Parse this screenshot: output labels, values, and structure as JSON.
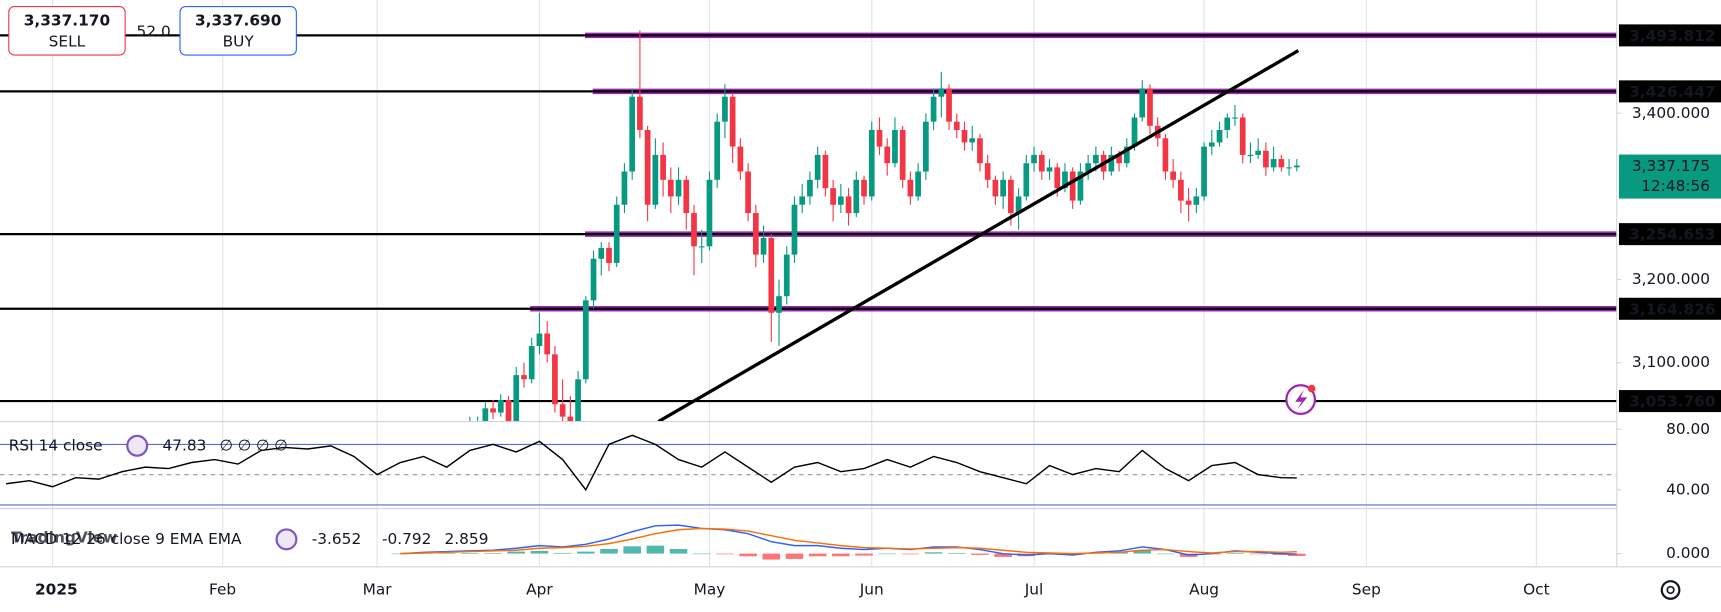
{
  "ui": {
    "sell_price": "3,337.170",
    "sell": "SELL",
    "spread": "52.0",
    "buy_price": "3,337.690",
    "buy": "BUY",
    "watermark": "TradingView"
  },
  "chart_data": [
    {
      "type": "candlestick",
      "xlim": [
        -6.8,
        202.4
      ],
      "xticks": [
        {
          "value": 0,
          "label": "2025"
        },
        {
          "value": 22,
          "label": "Feb"
        },
        {
          "value": 42,
          "label": "Mar"
        },
        {
          "value": 63,
          "label": "Apr"
        },
        {
          "value": 85,
          "label": "May"
        },
        {
          "value": 106,
          "label": "Jun"
        },
        {
          "value": 127,
          "label": "Jul"
        },
        {
          "value": 149,
          "label": "Aug"
        },
        {
          "value": 170,
          "label": "Sep"
        },
        {
          "value": 192,
          "label": "Oct"
        }
      ],
      "ylim": [
        3029.1,
        3536.4
      ],
      "yticks": [
        {
          "value": 3100,
          "label": "3,100.000"
        },
        {
          "value": 3200,
          "label": "3,200.000"
        },
        {
          "value": 3400,
          "label": "3,400.000"
        }
      ],
      "up_color": "#089981",
      "down_color": "#f23645",
      "x": [
        54,
        55,
        56,
        57,
        58,
        59,
        60,
        61,
        62,
        63,
        64,
        65,
        66,
        67,
        68,
        69,
        70,
        71,
        72,
        73,
        74,
        75,
        76,
        77,
        78,
        79,
        80,
        81,
        82,
        83,
        84,
        85,
        86,
        87,
        88,
        89,
        90,
        91,
        92,
        93,
        94,
        95,
        96,
        97,
        98,
        99,
        100,
        101,
        102,
        103,
        104,
        105,
        106,
        107,
        108,
        109,
        110,
        111,
        112,
        113,
        114,
        115,
        116,
        117,
        118,
        119,
        120,
        121,
        122,
        123,
        124,
        125,
        126,
        127,
        128,
        129,
        130,
        131,
        132,
        133,
        134,
        135,
        136,
        137,
        138,
        139,
        140,
        141,
        142,
        143,
        144,
        145,
        146,
        147,
        148,
        149,
        150,
        151,
        152,
        153,
        154,
        155,
        156,
        157,
        158,
        159,
        160,
        161
      ],
      "open": [
        3010,
        3020,
        3025,
        3045,
        3040,
        3055,
        3020,
        3085,
        3080,
        3120,
        3135,
        3110,
        3050,
        3035,
        2990,
        3080,
        3175,
        3225,
        3238,
        3220,
        3290,
        3330,
        3420,
        3380,
        3290,
        3350,
        3320,
        3300,
        3320,
        3280,
        3240,
        3240,
        3320,
        3390,
        3420,
        3360,
        3330,
        3280,
        3230,
        3250,
        3160,
        3180,
        3230,
        3290,
        3300,
        3320,
        3350,
        3310,
        3290,
        3300,
        3280,
        3320,
        3300,
        3380,
        3360,
        3340,
        3380,
        3320,
        3300,
        3330,
        3390,
        3420,
        3430,
        3390,
        3380,
        3365,
        3370,
        3340,
        3320,
        3300,
        3320,
        3280,
        3300,
        3340,
        3350,
        3330,
        3335,
        3310,
        3330,
        3295,
        3330,
        3340,
        3350,
        3330,
        3350,
        3340,
        3360,
        3395,
        3430,
        3385,
        3370,
        3330,
        3320,
        3295,
        3290,
        3300,
        3360,
        3365,
        3380,
        3395,
        3395,
        3350,
        3350,
        3355,
        3335,
        3345,
        3335,
        3335
      ],
      "high": [
        3035,
        3035,
        3052,
        3055,
        3062,
        3060,
        3095,
        3100,
        3130,
        3160,
        3150,
        3120,
        3080,
        3060,
        3090,
        3180,
        3235,
        3245,
        3245,
        3300,
        3340,
        3430,
        3500,
        3385,
        3370,
        3365,
        3335,
        3335,
        3325,
        3290,
        3260,
        3330,
        3400,
        3435,
        3425,
        3370,
        3340,
        3290,
        3265,
        3255,
        3200,
        3240,
        3300,
        3315,
        3330,
        3360,
        3355,
        3320,
        3315,
        3310,
        3330,
        3325,
        3390,
        3395,
        3370,
        3395,
        3385,
        3330,
        3340,
        3400,
        3430,
        3450,
        3435,
        3400,
        3390,
        3385,
        3375,
        3350,
        3325,
        3330,
        3325,
        3310,
        3350,
        3360,
        3355,
        3345,
        3340,
        3340,
        3335,
        3340,
        3350,
        3360,
        3355,
        3360,
        3355,
        3370,
        3400,
        3440,
        3435,
        3395,
        3375,
        3345,
        3330,
        3310,
        3310,
        3365,
        3380,
        3390,
        3400,
        3410,
        3400,
        3365,
        3370,
        3365,
        3360,
        3350,
        3345,
        3345
      ],
      "low": [
        3005,
        3012,
        3020,
        3032,
        3035,
        3010,
        3015,
        3070,
        3075,
        3110,
        3100,
        3040,
        3000,
        2975,
        2985,
        3075,
        3165,
        3205,
        3210,
        3215,
        3280,
        3320,
        3370,
        3270,
        3285,
        3300,
        3280,
        3290,
        3260,
        3205,
        3220,
        3235,
        3310,
        3370,
        3340,
        3320,
        3270,
        3215,
        3220,
        3125,
        3120,
        3170,
        3220,
        3280,
        3290,
        3310,
        3300,
        3270,
        3280,
        3265,
        3275,
        3290,
        3295,
        3350,
        3325,
        3335,
        3310,
        3290,
        3295,
        3320,
        3380,
        3395,
        3380,
        3370,
        3355,
        3355,
        3330,
        3310,
        3290,
        3285,
        3265,
        3260,
        3295,
        3330,
        3320,
        3320,
        3300,
        3305,
        3285,
        3290,
        3320,
        3330,
        3320,
        3325,
        3330,
        3335,
        3355,
        3390,
        3375,
        3360,
        3320,
        3310,
        3280,
        3270,
        3280,
        3295,
        3350,
        3360,
        3370,
        3385,
        3340,
        3340,
        3345,
        3325,
        3330,
        3330,
        3325,
        3330
      ],
      "close": [
        3020,
        3025,
        3045,
        3040,
        3055,
        3020,
        3085,
        3080,
        3120,
        3135,
        3110,
        3050,
        3035,
        2990,
        3080,
        3175,
        3225,
        3238,
        3220,
        3290,
        3330,
        3420,
        3380,
        3290,
        3350,
        3320,
        3300,
        3320,
        3280,
        3240,
        3240,
        3320,
        3390,
        3420,
        3360,
        3330,
        3280,
        3230,
        3250,
        3160,
        3180,
        3230,
        3290,
        3300,
        3320,
        3350,
        3310,
        3290,
        3300,
        3280,
        3320,
        3300,
        3380,
        3360,
        3340,
        3380,
        3320,
        3300,
        3330,
        3390,
        3420,
        3430,
        3390,
        3380,
        3365,
        3370,
        3340,
        3320,
        3300,
        3320,
        3280,
        3300,
        3340,
        3350,
        3330,
        3335,
        3310,
        3330,
        3295,
        3330,
        3340,
        3350,
        3330,
        3350,
        3340,
        3360,
        3395,
        3430,
        3385,
        3370,
        3330,
        3320,
        3295,
        3290,
        3300,
        3360,
        3365,
        3380,
        3395,
        3395,
        3350,
        3350,
        3355,
        3335,
        3345,
        3335,
        3335,
        3337.175
      ],
      "last_label": "3,337.175",
      "countdown": "12:48:56",
      "levels": [
        {
          "value": 3493.812,
          "label": "3,493.812",
          "start": 68.9
        },
        {
          "value": 3426.447,
          "label": "3,426.447",
          "start": 69.9
        },
        {
          "value": 3254.653,
          "label": "3,254.653",
          "start": 68.9
        },
        {
          "value": 3164.826,
          "label": "3,164.826",
          "start": 61.8
        },
        {
          "value": 3053.76,
          "label": "3,053.760"
        }
      ],
      "level_color": "#000000",
      "zone_color": "#9c27b0",
      "trendline": {
        "x": [
          78.4,
          161.2
        ],
        "y": [
          3029.1,
          3475.5
        ],
        "color": "#000000"
      }
    },
    {
      "type": "line",
      "legend": "RSI 14 close",
      "flags": "∅ ∅ ∅ ∅",
      "ylim": [
        27.6,
        85.1
      ],
      "yticks": [
        {
          "value": 80,
          "label": "80.00"
        },
        {
          "value": 40,
          "label": "40.00"
        }
      ],
      "bands": [
        70,
        30
      ],
      "midline": 50,
      "band_color": "#5b6bd6",
      "x": [
        -6,
        -3,
        0,
        3,
        6,
        9,
        12,
        15,
        18,
        21,
        24,
        27,
        30,
        33,
        36,
        39,
        42,
        45,
        48,
        51,
        54,
        57,
        60,
        63,
        66,
        69,
        72,
        75,
        78,
        81,
        84,
        87,
        90,
        93,
        96,
        99,
        102,
        105,
        108,
        111,
        114,
        117,
        120,
        123,
        126,
        129,
        132,
        135,
        138,
        141,
        144,
        147,
        150,
        153,
        156,
        159,
        161
      ],
      "series": [
        {
          "color": "#000000",
          "values": [
            44,
            46,
            42,
            48,
            47,
            52,
            55,
            54,
            58,
            60,
            57,
            66,
            68,
            67,
            69,
            62,
            50,
            58,
            62,
            55,
            66,
            70,
            65,
            72,
            60,
            40,
            70,
            76,
            70,
            60,
            55,
            65,
            55,
            45,
            55,
            58,
            52,
            54,
            60,
            55,
            62,
            58,
            52,
            48,
            44,
            56,
            50,
            54,
            52,
            66,
            54,
            46,
            56,
            58,
            50,
            48,
            47.83
          ]
        }
      ]
    },
    {
      "type": "macd",
      "legend": "MACD 12 26 close 9 EMA EMA",
      "ylim": [
        -20,
        68
      ],
      "yticks": [
        {
          "value": 0,
          "label": "0.000"
        }
      ],
      "x": [
        45,
        48,
        51,
        54,
        57,
        60,
        63,
        66,
        69,
        72,
        75,
        78,
        81,
        84,
        87,
        90,
        93,
        96,
        99,
        102,
        105,
        108,
        111,
        114,
        117,
        120,
        123,
        126,
        129,
        132,
        135,
        138,
        141,
        144,
        147,
        150,
        153,
        156,
        159,
        161
      ],
      "histogram": {
        "up_color": "#26a69a",
        "down_color": "#ff5252",
        "values": [
          0,
          1,
          1,
          1,
          1,
          3,
          4,
          1,
          3,
          7,
          11,
          12,
          7,
          0,
          -1,
          -4,
          -9,
          -8,
          -4,
          -4,
          -3,
          0,
          -1,
          2,
          1,
          -2,
          -5,
          -4,
          -1,
          -2,
          1,
          2,
          5,
          0,
          -5,
          -1,
          1,
          -1,
          -2,
          -3.652
        ]
      },
      "series": [
        {
          "color": "#2962ff",
          "values": [
            0,
            2,
            3,
            4,
            5,
            8,
            12,
            10,
            14,
            22,
            33,
            42,
            43,
            38,
            36,
            30,
            18,
            12,
            12,
            8,
            6,
            8,
            6,
            10,
            10,
            6,
            0,
            -2,
            0,
            -2,
            2,
            4,
            10,
            6,
            -2,
            0,
            4,
            2,
            0,
            -0.792
          ]
        },
        {
          "color": "#ff6d00",
          "values": [
            0,
            1,
            2,
            3,
            4,
            5,
            8,
            9,
            11,
            15,
            22,
            30,
            36,
            38,
            37,
            34,
            27,
            20,
            16,
            12,
            9,
            8,
            7,
            8,
            9,
            8,
            5,
            2,
            1,
            0,
            1,
            2,
            5,
            6,
            3,
            1,
            3,
            3,
            2,
            2.859
          ]
        }
      ]
    }
  ]
}
